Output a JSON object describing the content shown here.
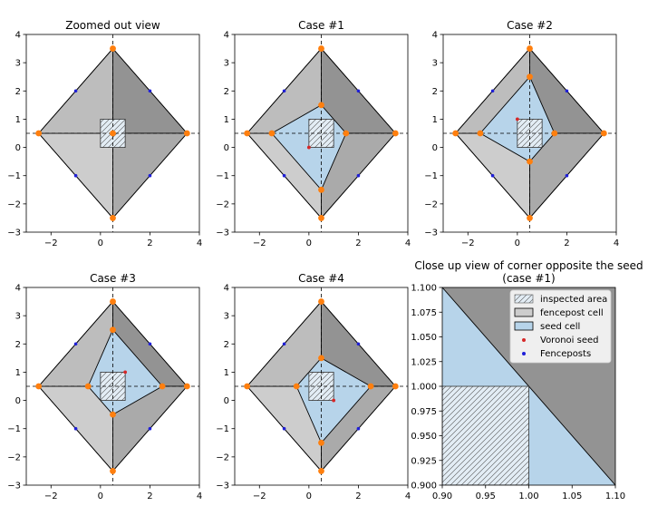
{
  "colors": {
    "cell_dark": "#939393",
    "cell_mid": "#aaaaaa",
    "cell_light_top": "#bdbdbd",
    "cell_light_bottom": "#cdcdcd",
    "seed_cell": "#b7d4ea",
    "hatch_fill": "#e3edf5",
    "edge": "#000000",
    "vertex": "#ff7f0e",
    "seed": "#d62728",
    "fencepost": "#1f1fd8"
  },
  "chart_data": [
    {
      "id": "zoomed-out",
      "type": "polygon-map",
      "title": "Zoomed out view",
      "xlim": [
        -3,
        4
      ],
      "ylim": [
        -3,
        4
      ],
      "xticks": [
        -2,
        0,
        2,
        4
      ],
      "yticks": [
        -3,
        -2,
        -1,
        0,
        1,
        2,
        3,
        4
      ],
      "cells": [
        {
          "color": "cell_dark",
          "points": [
            [
              0.5,
              0.5
            ],
            [
              0.5,
              3.5
            ],
            [
              3.5,
              0.5
            ]
          ]
        },
        {
          "color": "cell_mid",
          "points": [
            [
              0.5,
              0.5
            ],
            [
              3.5,
              0.5
            ],
            [
              0.5,
              -2.5
            ]
          ]
        },
        {
          "color": "cell_light_bottom",
          "points": [
            [
              0.5,
              0.5
            ],
            [
              0.5,
              -2.5
            ],
            [
              -2.5,
              0.5
            ]
          ]
        },
        {
          "color": "cell_light_top",
          "points": [
            [
              0.5,
              0.5
            ],
            [
              -2.5,
              0.5
            ],
            [
              0.5,
              3.5
            ]
          ]
        }
      ],
      "hatch_box": [
        0,
        0,
        1,
        1
      ],
      "vertices": [
        [
          0.5,
          3.5
        ],
        [
          3.5,
          0.5
        ],
        [
          0.5,
          -2.5
        ],
        [
          -2.5,
          0.5
        ],
        [
          0.5,
          0.5
        ]
      ],
      "fenceposts": [
        [
          -1,
          2
        ],
        [
          2,
          2
        ],
        [
          -1,
          -1
        ],
        [
          2,
          -1
        ]
      ],
      "seed": null
    },
    {
      "id": "case-1",
      "type": "polygon-map",
      "title": "Case #1",
      "xlim": [
        -3,
        4
      ],
      "ylim": [
        -3,
        4
      ],
      "xticks": [
        -2,
        0,
        2,
        4
      ],
      "yticks": [
        -3,
        -2,
        -1,
        0,
        1,
        2,
        3,
        4
      ],
      "seed_cell": [
        [
          0.5,
          1.5
        ],
        [
          1.5,
          0.5
        ],
        [
          0.5,
          -1.5
        ],
        [
          -1.5,
          0.5
        ]
      ],
      "hatch_box": [
        0,
        0,
        1,
        1
      ],
      "vertices": [
        [
          0.5,
          3.5
        ],
        [
          3.5,
          0.5
        ],
        [
          0.5,
          -2.5
        ],
        [
          -2.5,
          0.5
        ],
        [
          0.5,
          1.5
        ],
        [
          1.5,
          0.5
        ],
        [
          0.5,
          -1.5
        ],
        [
          -1.5,
          0.5
        ]
      ],
      "fenceposts": [
        [
          -1,
          2
        ],
        [
          2,
          2
        ],
        [
          -1,
          -1
        ],
        [
          2,
          -1
        ]
      ],
      "seed": [
        0,
        0
      ]
    },
    {
      "id": "case-2",
      "type": "polygon-map",
      "title": "Case #2",
      "xlim": [
        -3,
        4
      ],
      "ylim": [
        -3,
        4
      ],
      "xticks": [
        -2,
        0,
        2,
        4
      ],
      "yticks": [
        -3,
        -2,
        -1,
        0,
        1,
        2,
        3,
        4
      ],
      "seed_cell": [
        [
          0.5,
          2.5
        ],
        [
          1.5,
          0.5
        ],
        [
          0.5,
          -0.5
        ],
        [
          -1.5,
          0.5
        ]
      ],
      "hatch_box": [
        0,
        0,
        1,
        1
      ],
      "vertices": [
        [
          0.5,
          3.5
        ],
        [
          3.5,
          0.5
        ],
        [
          0.5,
          -2.5
        ],
        [
          -2.5,
          0.5
        ],
        [
          0.5,
          2.5
        ],
        [
          1.5,
          0.5
        ],
        [
          0.5,
          -0.5
        ],
        [
          -1.5,
          0.5
        ]
      ],
      "fenceposts": [
        [
          -1,
          2
        ],
        [
          2,
          2
        ],
        [
          -1,
          -1
        ],
        [
          2,
          -1
        ]
      ],
      "seed": [
        0,
        1
      ]
    },
    {
      "id": "case-3",
      "type": "polygon-map",
      "title": "Case #3",
      "xlim": [
        -3,
        4
      ],
      "ylim": [
        -3,
        4
      ],
      "xticks": [
        -2,
        0,
        2,
        4
      ],
      "yticks": [
        -3,
        -2,
        -1,
        0,
        1,
        2,
        3,
        4
      ],
      "seed_cell": [
        [
          0.5,
          2.5
        ],
        [
          2.5,
          0.5
        ],
        [
          0.5,
          -0.5
        ],
        [
          -0.5,
          0.5
        ]
      ],
      "hatch_box": [
        0,
        0,
        1,
        1
      ],
      "vertices": [
        [
          0.5,
          3.5
        ],
        [
          3.5,
          0.5
        ],
        [
          0.5,
          -2.5
        ],
        [
          -2.5,
          0.5
        ],
        [
          0.5,
          2.5
        ],
        [
          2.5,
          0.5
        ],
        [
          0.5,
          -0.5
        ],
        [
          -0.5,
          0.5
        ]
      ],
      "fenceposts": [
        [
          -1,
          2
        ],
        [
          2,
          2
        ],
        [
          -1,
          -1
        ],
        [
          2,
          -1
        ]
      ],
      "seed": [
        1,
        1
      ]
    },
    {
      "id": "case-4",
      "type": "polygon-map",
      "title": "Case #4",
      "xlim": [
        -3,
        4
      ],
      "ylim": [
        -3,
        4
      ],
      "xticks": [
        -2,
        0,
        2,
        4
      ],
      "yticks": [
        -3,
        -2,
        -1,
        0,
        1,
        2,
        3,
        4
      ],
      "seed_cell": [
        [
          0.5,
          1.5
        ],
        [
          2.5,
          0.5
        ],
        [
          0.5,
          -1.5
        ],
        [
          -0.5,
          0.5
        ]
      ],
      "hatch_box": [
        0,
        0,
        1,
        1
      ],
      "vertices": [
        [
          0.5,
          3.5
        ],
        [
          3.5,
          0.5
        ],
        [
          0.5,
          -2.5
        ],
        [
          -2.5,
          0.5
        ],
        [
          0.5,
          1.5
        ],
        [
          2.5,
          0.5
        ],
        [
          0.5,
          -1.5
        ],
        [
          -0.5,
          0.5
        ]
      ],
      "fenceposts": [
        [
          -1,
          2
        ],
        [
          2,
          2
        ],
        [
          -1,
          -1
        ],
        [
          2,
          -1
        ]
      ],
      "seed": [
        1,
        0
      ]
    },
    {
      "id": "close-up",
      "type": "polygon-map",
      "title": "Close up view of corner opposite the seed",
      "subtitle": "(case #1)",
      "xlim": [
        0.9,
        1.1
      ],
      "ylim": [
        0.9,
        1.1
      ],
      "xticks": [
        0.9,
        0.95,
        1.0,
        1.05,
        1.1
      ],
      "xtick_labels": [
        "0.90",
        "0.95",
        "1.00",
        "1.05",
        "1.10"
      ],
      "yticks": [
        0.9,
        0.925,
        0.95,
        0.975,
        1.0,
        1.025,
        1.05,
        1.075,
        1.1
      ],
      "ytick_labels": [
        "0.900",
        "0.925",
        "0.950",
        "0.975",
        "1.000",
        "1.025",
        "1.050",
        "1.075",
        "1.100"
      ],
      "hatch_box": [
        0,
        0,
        1,
        1
      ],
      "legend": {
        "placement": "upper right",
        "entries": [
          {
            "kind": "hatch",
            "label": "inspected area"
          },
          {
            "kind": "patch",
            "label": "fencepost cell"
          },
          {
            "kind": "seedpatch",
            "label": "seed cell"
          },
          {
            "kind": "seeddot",
            "label": "Voronoi seed"
          },
          {
            "kind": "fencedot",
            "label": "Fenceposts"
          }
        ]
      }
    }
  ]
}
